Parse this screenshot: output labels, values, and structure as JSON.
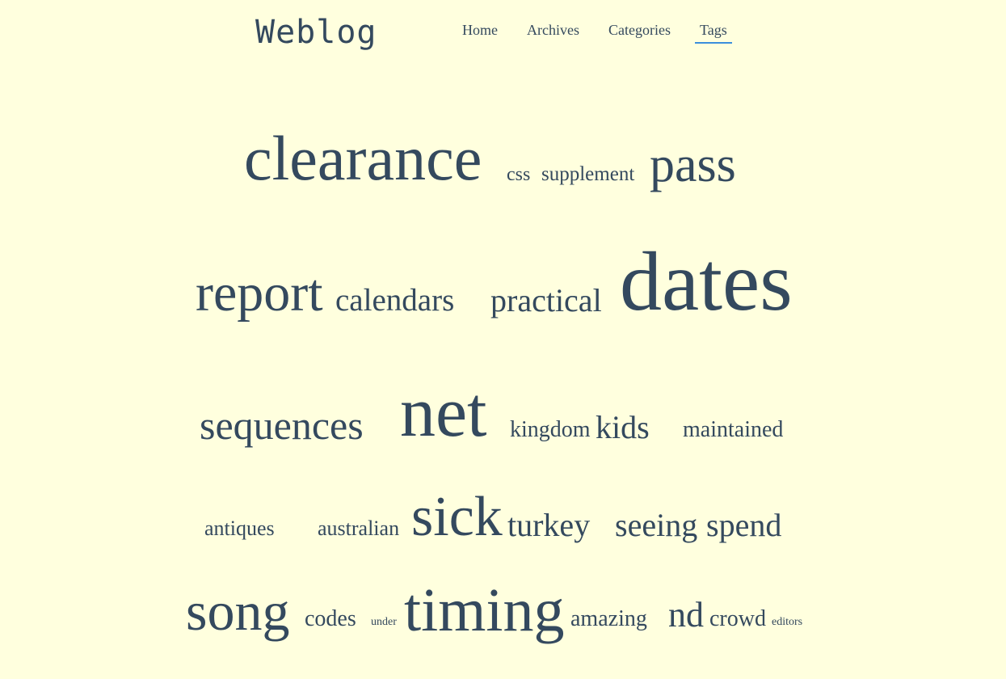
{
  "site": {
    "brand": "Weblog"
  },
  "nav": [
    {
      "label": "Home"
    },
    {
      "label": "Archives"
    },
    {
      "label": "Categories"
    },
    {
      "label": "Tags",
      "active": true
    }
  ],
  "tags": [
    "clearance",
    "css",
    "supplement",
    "pass",
    "report",
    "calendars",
    "practical",
    "dates",
    "sequences",
    "net",
    "kingdom",
    "kids",
    "maintained",
    "antiques",
    "australian",
    "sick",
    "turkey",
    "seeing",
    "spend",
    "song",
    "codes",
    "under",
    "timing",
    "amazing",
    "nd",
    "crowd",
    "editors"
  ],
  "colors": {
    "background": "#ffffde",
    "text": "#34495e",
    "accent": "#3b8fdc"
  }
}
